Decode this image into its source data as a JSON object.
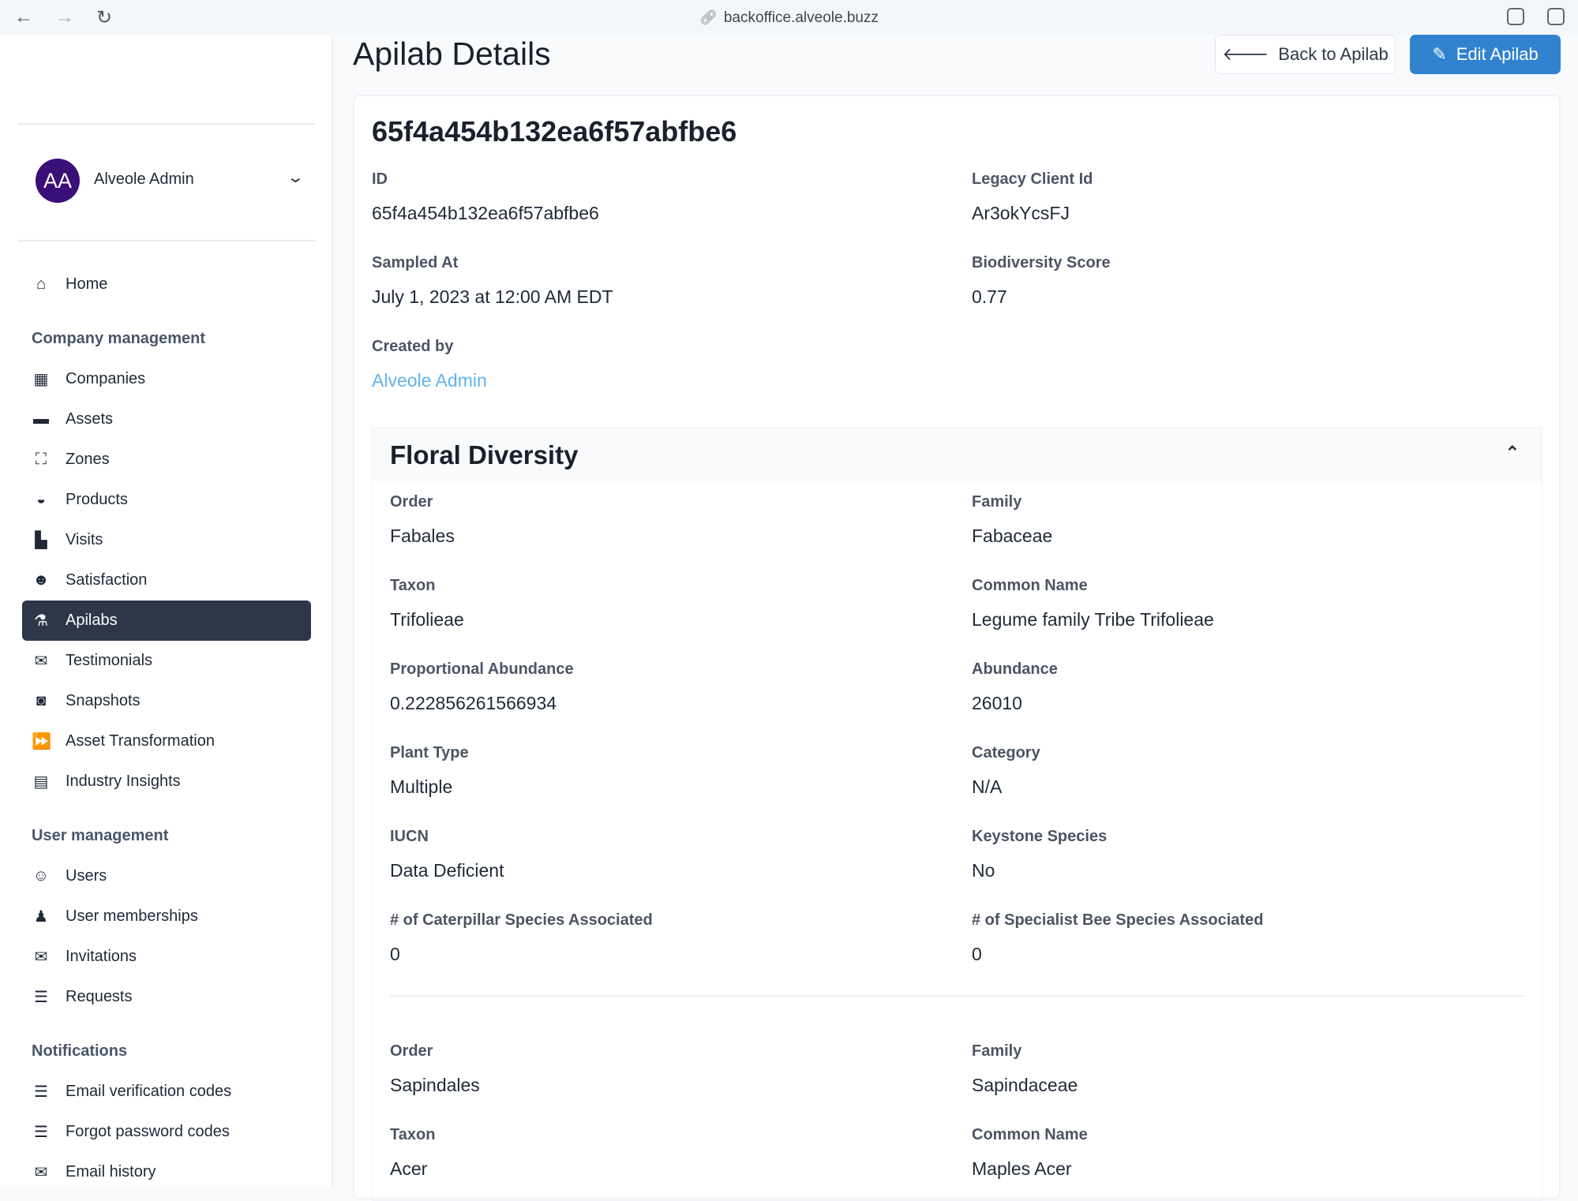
{
  "browser": {
    "url": "backoffice.alveole.buzz"
  },
  "user": {
    "initials": "AA",
    "name": "Alveole Admin"
  },
  "sidebar": [
    {
      "type": "item",
      "label": "Home",
      "icon": "home-icon",
      "glyph": "⌂"
    },
    {
      "type": "heading",
      "label": "Company management"
    },
    {
      "type": "item",
      "label": "Companies",
      "icon": "building-icon",
      "glyph": "▦"
    },
    {
      "type": "item",
      "label": "Assets",
      "icon": "money-bill-icon",
      "glyph": "▬"
    },
    {
      "type": "item",
      "label": "Zones",
      "icon": "vector-square-icon",
      "glyph": "⛶"
    },
    {
      "type": "item",
      "label": "Products",
      "icon": "box-open-icon",
      "glyph": "◒"
    },
    {
      "type": "item",
      "label": "Visits",
      "icon": "chart-bar-icon",
      "glyph": "▙"
    },
    {
      "type": "item",
      "label": "Satisfaction",
      "icon": "smile-icon",
      "glyph": "☻"
    },
    {
      "type": "item",
      "label": "Apilabs",
      "icon": "flask-icon",
      "glyph": "⚗",
      "active": true
    },
    {
      "type": "item",
      "label": "Testimonials",
      "icon": "comments-icon",
      "glyph": "✉"
    },
    {
      "type": "item",
      "label": "Snapshots",
      "icon": "camera-icon",
      "glyph": "◙"
    },
    {
      "type": "item",
      "label": "Asset Transformation",
      "icon": "forward-icon",
      "glyph": "⏩"
    },
    {
      "type": "item",
      "label": "Industry Insights",
      "icon": "newspaper-icon",
      "glyph": "▤"
    },
    {
      "type": "heading",
      "label": "User management"
    },
    {
      "type": "item",
      "label": "Users",
      "icon": "users-icon",
      "glyph": "☺"
    },
    {
      "type": "item",
      "label": "User memberships",
      "icon": "user-lock-icon",
      "glyph": "♟"
    },
    {
      "type": "item",
      "label": "Invitations",
      "icon": "envelope-icon",
      "glyph": "✉"
    },
    {
      "type": "item",
      "label": "Requests",
      "icon": "list-alt-icon",
      "glyph": "☰"
    },
    {
      "type": "heading",
      "label": "Notifications"
    },
    {
      "type": "item",
      "label": "Email verification codes",
      "icon": "list-alt-icon",
      "glyph": "☰"
    },
    {
      "type": "item",
      "label": "Forgot password codes",
      "icon": "list-alt-icon",
      "glyph": "☰"
    },
    {
      "type": "item",
      "label": "Email history",
      "icon": "mail-bulk-icon",
      "glyph": "✉"
    }
  ],
  "page": {
    "title": "Apilab Details",
    "back_label": "Back to Apilab",
    "edit_label": "Edit Apilab"
  },
  "record": {
    "heading": "65f4a454b132ea6f57abfbe6",
    "fields": [
      {
        "label": "ID",
        "value": "65f4a454b132ea6f57abfbe6"
      },
      {
        "label": "Legacy Client Id",
        "value": "Ar3okYcsFJ"
      },
      {
        "label": "Sampled At",
        "value": "July 1, 2023 at 12:00 AM EDT"
      },
      {
        "label": "Biodiversity Score",
        "value": "0.77"
      },
      {
        "label": "Created by",
        "value": "Alveole Admin",
        "link": true
      }
    ]
  },
  "floral": {
    "title": "Floral Diversity",
    "entries": [
      [
        {
          "label": "Order",
          "value": "Fabales"
        },
        {
          "label": "Family",
          "value": "Fabaceae"
        },
        {
          "label": "Taxon",
          "value": "Trifolieae"
        },
        {
          "label": "Common Name",
          "value": "Legume family Tribe Trifolieae"
        },
        {
          "label": "Proportional Abundance",
          "value": "0.222856261566934"
        },
        {
          "label": "Abundance",
          "value": "26010"
        },
        {
          "label": "Plant Type",
          "value": "Multiple"
        },
        {
          "label": "Category",
          "value": "N/A"
        },
        {
          "label": "IUCN",
          "value": "Data Deficient"
        },
        {
          "label": "Keystone Species",
          "value": "No"
        },
        {
          "label": "# of Caterpillar Species Associated",
          "value": "0"
        },
        {
          "label": "# of Specialist Bee Species Associated",
          "value": "0"
        }
      ],
      [
        {
          "label": "Order",
          "value": "Sapindales"
        },
        {
          "label": "Family",
          "value": "Sapindaceae"
        },
        {
          "label": "Taxon",
          "value": "Acer"
        },
        {
          "label": "Common Name",
          "value": "Maples Acer"
        }
      ]
    ]
  }
}
